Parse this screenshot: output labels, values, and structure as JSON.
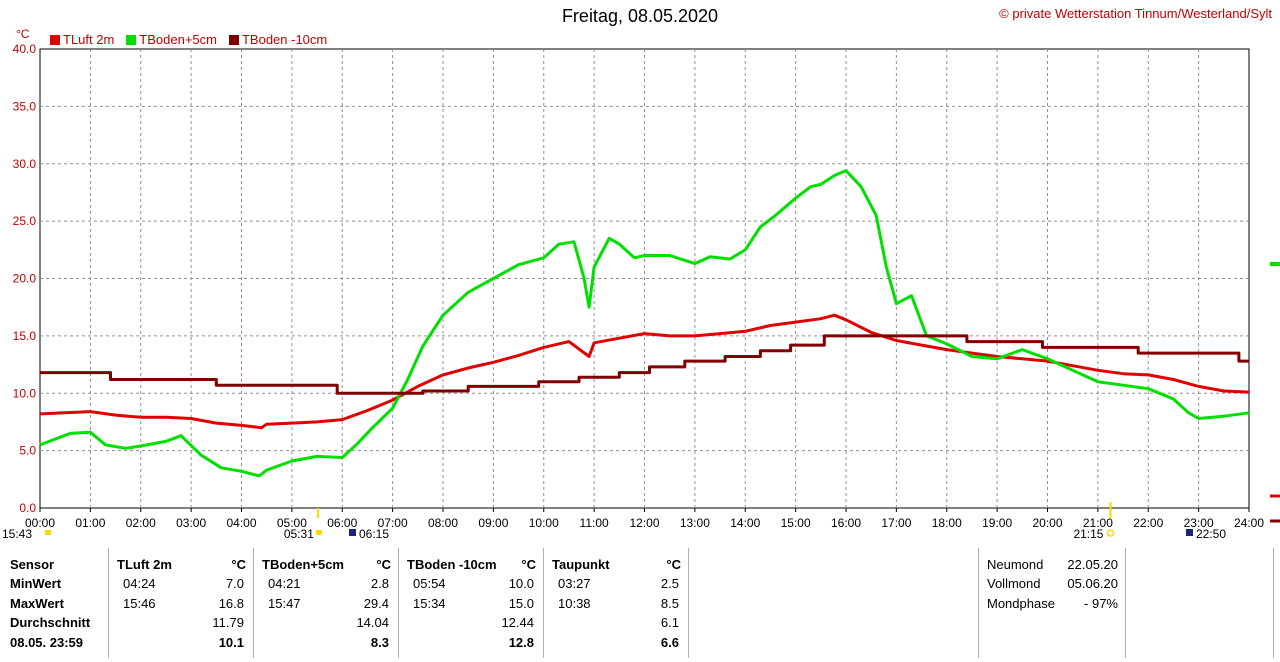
{
  "header": {
    "title": "Freitag, 08.05.2020",
    "copyright_symbol": "©",
    "copyright": "private Wetterstation Tinnum/Westerland/Sylt",
    "unit": "°C"
  },
  "chart_data": {
    "type": "line",
    "title": "Freitag, 08.05.2020",
    "ylabel": "°C",
    "xlabel": "",
    "ylim": [
      0,
      40
    ],
    "xlim_hours": [
      0,
      24
    ],
    "grid": true,
    "legend_position": "top-left",
    "y_ticks": [
      "0.0",
      "5.0",
      "10.0",
      "15.0",
      "20.0",
      "25.0",
      "30.0",
      "35.0",
      "40.0"
    ],
    "x_ticks": [
      "00:00",
      "01:00",
      "02:00",
      "03:00",
      "04:00",
      "05:00",
      "06:00",
      "07:00",
      "08:00",
      "09:00",
      "10:00",
      "11:00",
      "12:00",
      "13:00",
      "14:00",
      "15:00",
      "16:00",
      "17:00",
      "18:00",
      "19:00",
      "20:00",
      "21:00",
      "22:00",
      "23:00",
      "24:00"
    ],
    "series": [
      {
        "name": "TLuft 2m",
        "color": "#e00000",
        "x": [
          0,
          0.5,
          1,
          1.5,
          2,
          2.5,
          3,
          3.5,
          4,
          4.4,
          4.5,
          5,
          5.5,
          6,
          6.5,
          7,
          7.5,
          8,
          8.5,
          9,
          9.5,
          10,
          10.5,
          10.9,
          11,
          11.5,
          12,
          12.5,
          13,
          13.5,
          14,
          14.5,
          15,
          15.5,
          15.77,
          16,
          16.5,
          17,
          17.5,
          18,
          18.5,
          19,
          19.5,
          20,
          20.5,
          21,
          21.5,
          22,
          22.5,
          23,
          23.5,
          24
        ],
        "y": [
          8.2,
          8.3,
          8.4,
          8.1,
          7.9,
          7.9,
          7.8,
          7.4,
          7.2,
          7.0,
          7.3,
          7.4,
          7.5,
          7.7,
          8.5,
          9.4,
          10.6,
          11.6,
          12.2,
          12.7,
          13.3,
          14.0,
          14.5,
          13.2,
          14.4,
          14.8,
          15.2,
          15.0,
          15.0,
          15.2,
          15.4,
          15.9,
          16.2,
          16.5,
          16.8,
          16.4,
          15.3,
          14.6,
          14.2,
          13.8,
          13.5,
          13.2,
          13.0,
          12.8,
          12.4,
          12.0,
          11.7,
          11.6,
          11.2,
          10.6,
          10.2,
          10.1
        ]
      },
      {
        "name": "TBoden+5cm",
        "color": "#00e000",
        "x": [
          0,
          0.3,
          0.6,
          1,
          1.3,
          1.7,
          2,
          2.5,
          2.8,
          3.2,
          3.6,
          4,
          4.35,
          4.5,
          5,
          5.5,
          6,
          6.3,
          6.6,
          7,
          7.3,
          7.6,
          8,
          8.5,
          9,
          9.5,
          10,
          10.3,
          10.6,
          10.8,
          10.9,
          11,
          11.3,
          11.5,
          11.8,
          12,
          12.5,
          13,
          13.3,
          13.7,
          14,
          14.3,
          14.6,
          15,
          15.3,
          15.5,
          15.78,
          16,
          16.3,
          16.6,
          16.8,
          17,
          17.3,
          17.6,
          18,
          18.5,
          19,
          19.5,
          20,
          20.5,
          21,
          21.5,
          22,
          22.5,
          22.8,
          23,
          23.5,
          24
        ],
        "y": [
          5.5,
          6.0,
          6.5,
          6.6,
          5.5,
          5.2,
          5.4,
          5.8,
          6.3,
          4.6,
          3.5,
          3.2,
          2.8,
          3.3,
          4.1,
          4.5,
          4.4,
          5.6,
          7.0,
          8.7,
          11.2,
          14.1,
          16.8,
          18.8,
          20.0,
          21.2,
          21.8,
          23.0,
          23.2,
          20.0,
          17.5,
          21.0,
          23.5,
          23.0,
          21.8,
          22.0,
          22.0,
          21.3,
          21.9,
          21.7,
          22.5,
          24.5,
          25.5,
          27.0,
          28.0,
          28.2,
          29.0,
          29.4,
          28.0,
          25.5,
          21.0,
          17.8,
          18.5,
          15.0,
          14.3,
          13.2,
          13.0,
          13.8,
          13.0,
          12.0,
          11.0,
          10.7,
          10.4,
          9.5,
          8.3,
          7.8,
          8.0,
          8.3
        ]
      },
      {
        "name": "TBoden -10cm",
        "color": "#800000",
        "x": [
          0,
          1.4,
          1.4,
          3.5,
          3.5,
          5.9,
          5.9,
          7.6,
          7.6,
          8.5,
          8.5,
          9.9,
          9.9,
          10.7,
          10.7,
          11.5,
          11.5,
          12.1,
          12.1,
          12.8,
          12.8,
          13.6,
          13.6,
          14.3,
          14.3,
          14.9,
          14.9,
          15.57,
          15.57,
          17.0,
          17.0,
          18.4,
          18.4,
          19.9,
          19.9,
          21.8,
          21.8,
          23.8,
          23.8,
          24
        ],
        "y": [
          11.8,
          11.8,
          11.2,
          11.2,
          10.7,
          10.7,
          10.0,
          10.0,
          10.2,
          10.2,
          10.6,
          10.6,
          11.0,
          11.0,
          11.4,
          11.4,
          11.8,
          11.8,
          12.3,
          12.3,
          12.8,
          12.8,
          13.2,
          13.2,
          13.7,
          13.7,
          14.2,
          14.2,
          15.0,
          15.0,
          15.0,
          15.0,
          14.5,
          14.5,
          14.0,
          14.0,
          13.5,
          13.5,
          12.8,
          12.8
        ]
      }
    ],
    "annotations": {
      "sun_left": "15:43",
      "sunrise": "05:31",
      "moonrise": "06:15",
      "sunset": "21:15",
      "moonset": "22:50"
    }
  },
  "stats_table": {
    "sensor_header": "Sensor",
    "row_labels": [
      "MinWert",
      "MaxWert",
      "Durchschnitt",
      "08.05. 23:59"
    ],
    "columns": [
      {
        "name": "TLuft 2m",
        "unit": "°C",
        "min_time": "04:24",
        "min": "7.0",
        "max_time": "15:46",
        "max": "16.8",
        "avg": "11.79",
        "current": "10.1"
      },
      {
        "name": "TBoden+5cm",
        "unit": "°C",
        "min_time": "04:21",
        "min": "2.8",
        "max_time": "15:47",
        "max": "29.4",
        "avg": "14.04",
        "current": "8.3"
      },
      {
        "name": "TBoden -10cm",
        "unit": "°C",
        "min_time": "05:54",
        "min": "10.0",
        "max_time": "15:34",
        "max": "15.0",
        "avg": "12.44",
        "current": "12.8"
      },
      {
        "name": "Taupunkt",
        "unit": "°C",
        "min_time": "03:27",
        "min": "2.5",
        "max_time": "10:38",
        "max": "8.5",
        "avg": "6.1",
        "current": "6.6"
      }
    ],
    "moon": [
      {
        "label": "Neumond",
        "value": "22.05.20"
      },
      {
        "label": "Vollmond",
        "value": "05.06.20"
      },
      {
        "label": "Mondphase",
        "value": "- 97%"
      }
    ]
  }
}
